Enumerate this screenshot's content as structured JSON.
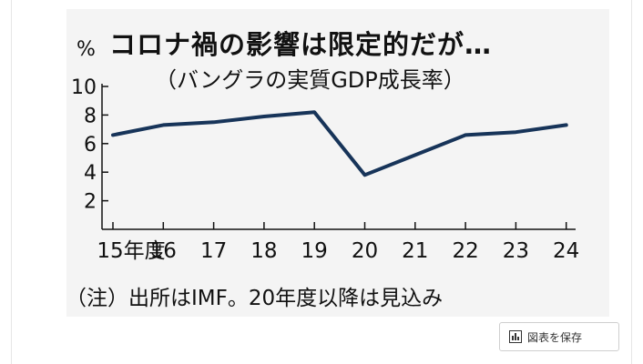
{
  "header": {
    "title": "コロナ禍の影響は限定的だが…",
    "subtitle": "（バングラの実質GDP成長率）"
  },
  "note": "（注）出所はIMF。20年度以降は見込み",
  "save_button": {
    "label": "図表を保存",
    "icon": "bar-chart-icon"
  },
  "colors": {
    "line": "#173459",
    "axis": "#111111",
    "background": "#f4f4f4"
  },
  "chart_data": {
    "type": "line",
    "title": "コロナ禍の影響は限定的だが…",
    "subtitle": "（バングラの実質GDP成長率）",
    "unit_label": "%",
    "categories": [
      "15年度",
      "16",
      "17",
      "18",
      "19",
      "20",
      "21",
      "22",
      "23",
      "24"
    ],
    "values": [
      6.6,
      7.3,
      7.5,
      7.9,
      8.2,
      3.8,
      5.2,
      6.6,
      6.8,
      7.3
    ],
    "yticks": [
      2,
      4,
      6,
      8,
      10
    ],
    "ylim": [
      0,
      10
    ],
    "grid": false,
    "legend": "none"
  }
}
